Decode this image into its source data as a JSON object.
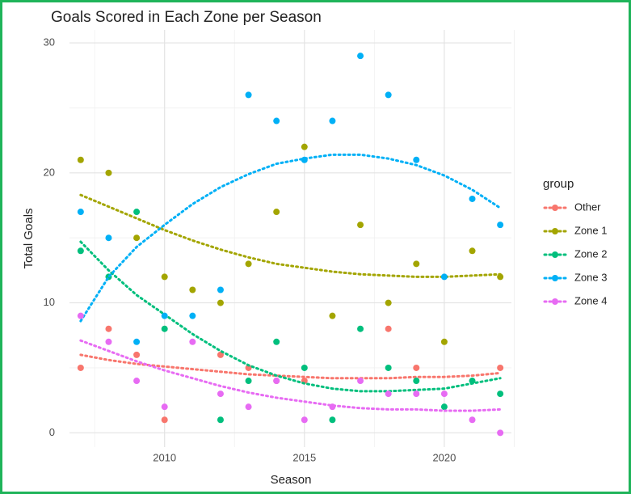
{
  "chart_data": {
    "type": "scatter",
    "title": "Goals Scored in Each Zone per Season",
    "x_label": "Season",
    "y_label": "Total Goals",
    "legend_title": "group",
    "legend": "right",
    "xlim": [
      2006.6,
      2022.4
    ],
    "xticks": [
      2010,
      2015,
      2020
    ],
    "ylim": [
      -1.1,
      31
    ],
    "yticks": [
      0,
      10,
      20,
      30
    ],
    "grid": true,
    "trend_x": [
      2007,
      2008,
      2009,
      2010,
      2011,
      2012,
      2013,
      2014,
      2015,
      2016,
      2017,
      2018,
      2019,
      2020,
      2021,
      2022
    ],
    "series": [
      {
        "name": "Other",
        "color": "#F8766D",
        "x": [
          2007,
          2008,
          2009,
          2010,
          2012,
          2013,
          2014,
          2015,
          2018,
          2019,
          2022
        ],
        "values": [
          5,
          8,
          6,
          1,
          6,
          5,
          4,
          4,
          8,
          5,
          5
        ],
        "trend": [
          6.0,
          5.6,
          5.3,
          5.1,
          4.9,
          4.7,
          4.5,
          4.4,
          4.3,
          4.2,
          4.2,
          4.2,
          4.3,
          4.3,
          4.4,
          4.6
        ]
      },
      {
        "name": "Zone 1",
        "color": "#A3A500",
        "x": [
          2007,
          2008,
          2009,
          2010,
          2011,
          2012,
          2013,
          2014,
          2015,
          2016,
          2017,
          2018,
          2019,
          2020,
          2021,
          2022
        ],
        "values": [
          21,
          20,
          15,
          12,
          11,
          10,
          13,
          17,
          22,
          9,
          16,
          10,
          13,
          7,
          14,
          12
        ],
        "trend": [
          18.3,
          17.4,
          16.5,
          15.6,
          14.8,
          14.1,
          13.5,
          13.0,
          12.7,
          12.4,
          12.2,
          12.1,
          12.0,
          12.0,
          12.1,
          12.2
        ]
      },
      {
        "name": "Zone 2",
        "color": "#00BF7D",
        "x": [
          2007,
          2008,
          2009,
          2010,
          2012,
          2013,
          2014,
          2015,
          2016,
          2017,
          2018,
          2019,
          2020,
          2021,
          2022
        ],
        "values": [
          14,
          12,
          17,
          8,
          1,
          4,
          7,
          5,
          1,
          8,
          5,
          4,
          2,
          4,
          3
        ],
        "trend": [
          14.7,
          12.5,
          10.6,
          9.1,
          7.6,
          6.3,
          5.2,
          4.4,
          3.8,
          3.4,
          3.2,
          3.2,
          3.3,
          3.4,
          3.8,
          4.2
        ]
      },
      {
        "name": "Zone 3",
        "color": "#00B0F6",
        "x": [
          2007,
          2008,
          2009,
          2010,
          2011,
          2012,
          2013,
          2014,
          2015,
          2016,
          2017,
          2018,
          2019,
          2020,
          2021,
          2022
        ],
        "values": [
          17,
          15,
          7,
          9,
          9,
          11,
          26,
          24,
          21,
          24,
          29,
          26,
          21,
          12,
          18,
          16
        ],
        "trend": [
          8.6,
          12.0,
          14.3,
          16.0,
          17.6,
          18.9,
          19.9,
          20.7,
          21.1,
          21.4,
          21.4,
          21.1,
          20.6,
          19.8,
          18.7,
          17.3
        ]
      },
      {
        "name": "Zone 4",
        "color": "#E76BF3",
        "x": [
          2007,
          2008,
          2009,
          2010,
          2011,
          2012,
          2013,
          2014,
          2015,
          2016,
          2017,
          2018,
          2019,
          2020,
          2021,
          2022
        ],
        "values": [
          9,
          7,
          4,
          2,
          7,
          3,
          2,
          4,
          1,
          2,
          4,
          3,
          3,
          3,
          1,
          0
        ],
        "trend": [
          7.1,
          6.3,
          5.5,
          4.8,
          4.2,
          3.6,
          3.1,
          2.7,
          2.4,
          2.1,
          1.9,
          1.8,
          1.8,
          1.7,
          1.7,
          1.8
        ]
      }
    ]
  }
}
